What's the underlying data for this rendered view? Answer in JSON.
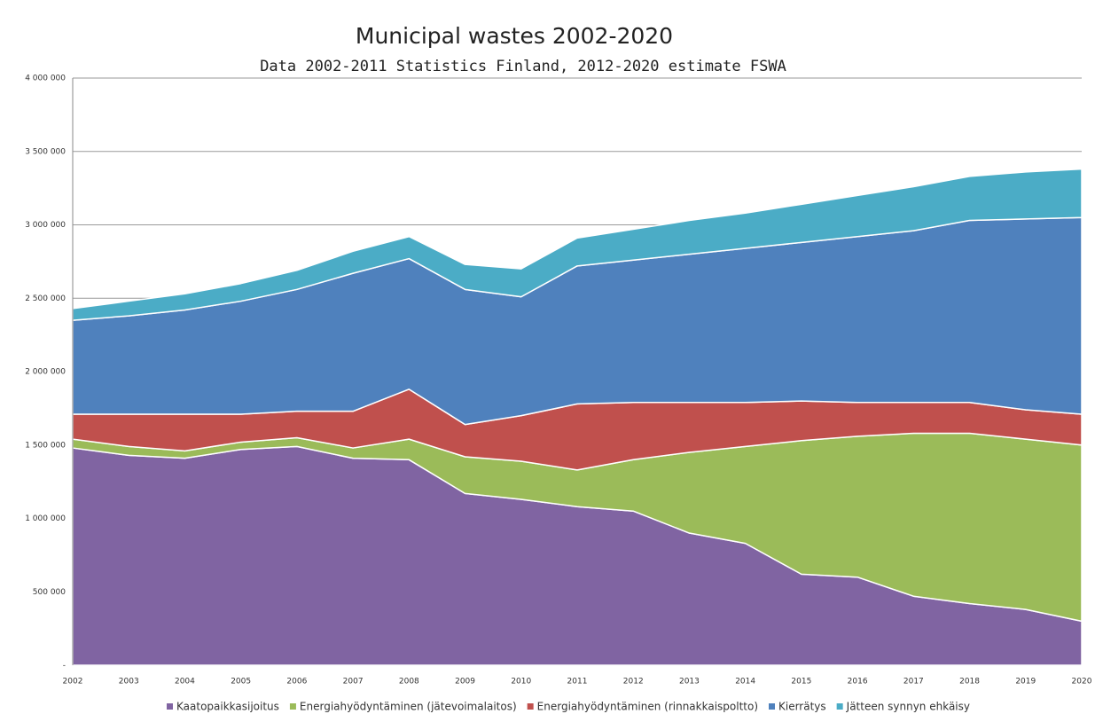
{
  "chart_data": {
    "type": "stacked_area",
    "title": "Municipal wastes 2002-2020",
    "subtitle": "Data 2002-2011 Statistics Finland, 2012-2020 estimate FSWA",
    "categories": [
      "2002",
      "2003",
      "2004",
      "2005",
      "2006",
      "2007",
      "2008",
      "2009",
      "2010",
      "2011",
      "2012",
      "2013",
      "2014",
      "2015",
      "2016",
      "2017",
      "2018",
      "2019",
      "2020"
    ],
    "ylim": [
      0,
      4000000
    ],
    "yticks": [
      {
        "value": 0,
        "label": "-"
      },
      {
        "value": 500000,
        "label": "500 000"
      },
      {
        "value": 1000000,
        "label": "1 000 000"
      },
      {
        "value": 1500000,
        "label": "1 500 000"
      },
      {
        "value": 2000000,
        "label": "2 000 000"
      },
      {
        "value": 2500000,
        "label": "2 500 000"
      },
      {
        "value": 3000000,
        "label": "3 000 000"
      },
      {
        "value": 3500000,
        "label": "3 500 000"
      },
      {
        "value": 4000000,
        "label": "4 000 000"
      }
    ],
    "grid": true,
    "legend": "bottom",
    "series": [
      {
        "name": "Kaatopaikkasijoitus",
        "color": "#8064a2",
        "values": [
          1480000,
          1430000,
          1410000,
          1470000,
          1490000,
          1410000,
          1400000,
          1170000,
          1130000,
          1080000,
          1050000,
          900000,
          830000,
          620000,
          600000,
          470000,
          420000,
          380000,
          300000
        ]
      },
      {
        "name": "Energiahyödyntäminen (jätevoimalaitos)",
        "color": "#9bbb59",
        "values": [
          60000,
          60000,
          50000,
          50000,
          60000,
          70000,
          140000,
          250000,
          260000,
          250000,
          350000,
          550000,
          660000,
          910000,
          960000,
          1110000,
          1160000,
          1160000,
          1200000
        ]
      },
      {
        "name": "Energiahyödyntäminen (rinnakkaispoltto)",
        "color": "#c0504d",
        "values": [
          170000,
          220000,
          250000,
          190000,
          180000,
          250000,
          340000,
          220000,
          310000,
          450000,
          390000,
          340000,
          300000,
          270000,
          230000,
          210000,
          210000,
          200000,
          210000
        ]
      },
      {
        "name": "Kierrätys",
        "color": "#4f81bd",
        "values": [
          640000,
          670000,
          710000,
          770000,
          830000,
          940000,
          890000,
          920000,
          810000,
          940000,
          970000,
          1010000,
          1050000,
          1080000,
          1130000,
          1170000,
          1240000,
          1300000,
          1340000
        ]
      },
      {
        "name": "Jätteen synnyn ehkäisy",
        "color": "#4bacc6",
        "values": [
          80000,
          100000,
          110000,
          120000,
          130000,
          150000,
          150000,
          170000,
          190000,
          190000,
          210000,
          230000,
          240000,
          260000,
          280000,
          300000,
          300000,
          320000,
          330000
        ]
      }
    ]
  }
}
